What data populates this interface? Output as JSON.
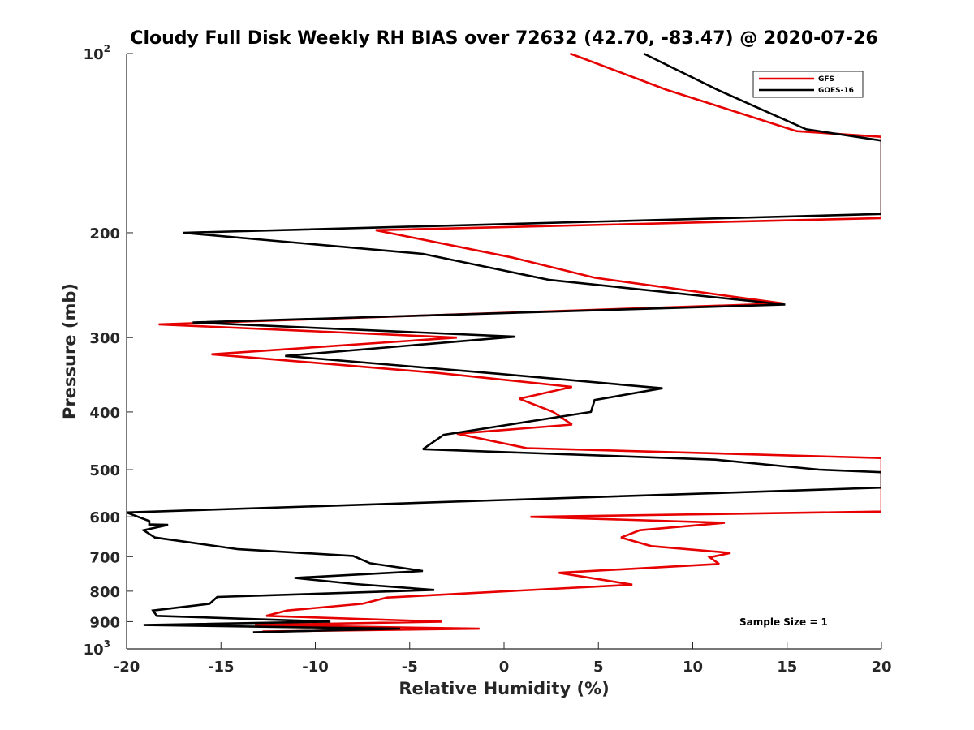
{
  "chart_data": {
    "type": "line",
    "title": "Cloudy Full Disk Weekly RH BIAS over 72632 (42.70, -83.47) @ 2020-07-26",
    "xlabel": "Relative Humidity (%)",
    "ylabel": "Pressure (mb)",
    "xlim": [
      -20,
      20
    ],
    "ylim": [
      100,
      1000
    ],
    "y_scale": "log",
    "y_reversed": true,
    "grid": false,
    "legend_position": "top-right",
    "x_ticks": [
      "-20",
      "-15",
      "-10",
      "-5",
      "0",
      "5",
      "10",
      "15",
      "20"
    ],
    "y_ticks": [
      {
        "value": 100,
        "label": "10",
        "sup": "2"
      },
      {
        "value": 200,
        "label": "200"
      },
      {
        "value": 300,
        "label": "300"
      },
      {
        "value": 400,
        "label": "400"
      },
      {
        "value": 500,
        "label": "500"
      },
      {
        "value": 600,
        "label": "600"
      },
      {
        "value": 700,
        "label": "700"
      },
      {
        "value": 800,
        "label": "800"
      },
      {
        "value": 900,
        "label": "900"
      },
      {
        "value": 1000,
        "label": "10",
        "sup": "3"
      }
    ],
    "annotation": "Sample Size = 1",
    "series": [
      {
        "name": "GFS",
        "color": "#e60000",
        "points": [
          [
            3.5,
            100
          ],
          [
            8.6,
            115
          ],
          [
            15.5,
            135
          ],
          [
            20,
            138
          ],
          [
            20,
            189
          ],
          [
            -6.8,
            198
          ],
          [
            0.4,
            220
          ],
          [
            4.8,
            238
          ],
          [
            14.8,
            263
          ],
          [
            -18.3,
            285
          ],
          [
            -2.5,
            300
          ],
          [
            -15.5,
            320
          ],
          [
            -3.5,
            344
          ],
          [
            3.6,
            363
          ],
          [
            0.8,
            380
          ],
          [
            2.6,
            400
          ],
          [
            3.6,
            420
          ],
          [
            -2.5,
            435
          ],
          [
            1.2,
            460
          ],
          [
            20,
            478
          ],
          [
            20,
            588
          ],
          [
            1.4,
            600
          ],
          [
            11.7,
            614
          ],
          [
            7.2,
            632
          ],
          [
            6.2,
            650
          ],
          [
            7.8,
            672
          ],
          [
            12,
            690
          ],
          [
            10.9,
            702
          ],
          [
            11.4,
            720
          ],
          [
            2.9,
            745
          ],
          [
            6.8,
            780
          ],
          [
            -6.2,
            820
          ],
          [
            -7.5,
            840
          ],
          [
            -11.5,
            862
          ],
          [
            -12.6,
            880
          ],
          [
            -3.3,
            900
          ],
          [
            -13.2,
            912
          ],
          [
            -1.3,
            925
          ],
          [
            -12.8,
            935
          ]
        ]
      },
      {
        "name": "GOES-16",
        "color": "#000000",
        "points": [
          [
            7.4,
            100
          ],
          [
            11.3,
            115
          ],
          [
            16,
            134
          ],
          [
            20,
            140
          ],
          [
            20,
            186
          ],
          [
            -17,
            200
          ],
          [
            -4.3,
            217
          ],
          [
            2.4,
            240
          ],
          [
            14.9,
            264
          ],
          [
            -16.5,
            283
          ],
          [
            0.6,
            299
          ],
          [
            -11.6,
            322
          ],
          [
            -0.3,
            345
          ],
          [
            8.4,
            365
          ],
          [
            4.8,
            382
          ],
          [
            4.6,
            400
          ],
          [
            -3.2,
            437
          ],
          [
            -4.3,
            462
          ],
          [
            11.2,
            481
          ],
          [
            16.7,
            500
          ],
          [
            20,
            505
          ],
          [
            20,
            536
          ],
          [
            -20,
            590
          ],
          [
            -18.8,
            610
          ],
          [
            -18.8,
            618
          ],
          [
            -17.8,
            619
          ],
          [
            -19.1,
            632
          ],
          [
            -18.5,
            650
          ],
          [
            -14.1,
            680
          ],
          [
            -8,
            698
          ],
          [
            -7.1,
            718
          ],
          [
            -4.3,
            740
          ],
          [
            -11.1,
            760
          ],
          [
            -7.9,
            778
          ],
          [
            -3.7,
            796
          ],
          [
            -15.2,
            818
          ],
          [
            -15.6,
            840
          ],
          [
            -18.6,
            862
          ],
          [
            -18.4,
            880
          ],
          [
            -9.2,
            900
          ],
          [
            -19.1,
            912
          ],
          [
            -5.5,
            925
          ],
          [
            -13.3,
            938
          ]
        ]
      }
    ]
  }
}
